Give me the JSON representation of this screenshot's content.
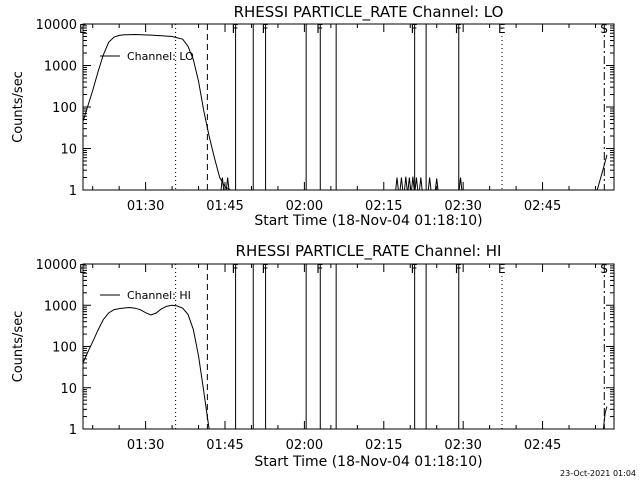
{
  "chart_data": [
    {
      "type": "line",
      "title": "RHESSI PARTICLE_RATE Channel: LO",
      "xlabel": "Start Time (18-Nov-04 01:18:10)",
      "ylabel": "Counts/sec",
      "yscale": "log",
      "ylim": [
        1,
        10000
      ],
      "xlim": [
        "01:18:10",
        "02:58:30"
      ],
      "xtick_labels": [
        "01:30",
        "01:45",
        "02:00",
        "02:15",
        "02:30",
        "02:45"
      ],
      "ytick_labels": [
        "1",
        "10",
        "100",
        "1000",
        "10000"
      ],
      "grid": false,
      "legend": "upper-left",
      "series": [
        {
          "name": "Channel: LO",
          "x": [
            "01:18:10",
            "01:20:00",
            "01:21:00",
            "01:22:00",
            "01:23:00",
            "01:24:00",
            "01:25:00",
            "01:26:00",
            "01:28:00",
            "01:31:00",
            "01:33:00",
            "01:35:00",
            "01:37:00",
            "01:38:00",
            "01:39:00",
            "01:40:00",
            "01:41:00",
            "01:42:00",
            "01:43:00",
            "01:44:00",
            "01:45:00",
            "01:46:00"
          ],
          "y": [
            45,
            250,
            700,
            1800,
            3600,
            4800,
            5300,
            5500,
            5600,
            5400,
            5200,
            5000,
            4300,
            2900,
            1400,
            420,
            80,
            20,
            6,
            2,
            1.2,
            1
          ]
        }
      ],
      "annotations": [
        {
          "time": "01:18:10",
          "label": "E",
          "style": "none"
        },
        {
          "time": "01:35:40",
          "label": "",
          "style": "dotted"
        },
        {
          "time": "01:41:40",
          "label": "",
          "style": "dashed"
        },
        {
          "time": "01:47:00",
          "label": "F",
          "style": "solid"
        },
        {
          "time": "01:50:20",
          "label": "",
          "style": "solid"
        },
        {
          "time": "01:52:40",
          "label": "F",
          "style": "solid"
        },
        {
          "time": "02:00:20",
          "label": "",
          "style": "solid"
        },
        {
          "time": "02:03:00",
          "label": "F",
          "style": "solid"
        },
        {
          "time": "02:06:00",
          "label": "",
          "style": "solid"
        },
        {
          "time": "02:20:50",
          "label": "F",
          "style": "solid"
        },
        {
          "time": "02:23:00",
          "label": "",
          "style": "solid"
        },
        {
          "time": "02:29:10",
          "label": "F",
          "style": "solid"
        },
        {
          "time": "02:37:20",
          "label": "E",
          "style": "dotted"
        },
        {
          "time": "02:56:40",
          "label": "S",
          "style": "dashdot"
        }
      ]
    },
    {
      "type": "line",
      "title": "RHESSI PARTICLE_RATE Channel: HI",
      "xlabel": "Start Time (18-Nov-04 01:18:10)",
      "ylabel": "Counts/sec",
      "yscale": "log",
      "ylim": [
        1,
        10000
      ],
      "xlim": [
        "01:18:10",
        "02:58:30"
      ],
      "xtick_labels": [
        "01:30",
        "01:45",
        "02:00",
        "02:15",
        "02:30",
        "02:45"
      ],
      "ytick_labels": [
        "1",
        "10",
        "100",
        "1000",
        "10000"
      ],
      "grid": false,
      "legend": "upper-left",
      "series": [
        {
          "name": "Channel: HI",
          "x": [
            "01:18:10",
            "01:19:00",
            "01:20:00",
            "01:21:00",
            "01:22:00",
            "01:23:00",
            "01:24:00",
            "01:25:00",
            "01:26:00",
            "01:27:00",
            "01:28:00",
            "01:29:00",
            "01:30:00",
            "01:31:00",
            "01:32:00",
            "01:33:00",
            "01:34:00",
            "01:35:00",
            "01:36:00",
            "01:37:00",
            "01:38:00",
            "01:39:00",
            "01:40:00",
            "01:41:00",
            "01:42:00"
          ],
          "y": [
            40,
            70,
            130,
            250,
            450,
            650,
            780,
            830,
            860,
            880,
            850,
            780,
            660,
            580,
            650,
            820,
            950,
            1000,
            960,
            850,
            600,
            260,
            60,
            8,
            1
          ]
        }
      ],
      "annotations": [
        {
          "time": "01:18:10",
          "label": "E",
          "style": "none"
        },
        {
          "time": "01:35:40",
          "label": "",
          "style": "dotted"
        },
        {
          "time": "01:41:40",
          "label": "",
          "style": "dashed"
        },
        {
          "time": "01:47:00",
          "label": "F",
          "style": "solid"
        },
        {
          "time": "01:50:20",
          "label": "",
          "style": "solid"
        },
        {
          "time": "01:52:40",
          "label": "F",
          "style": "solid"
        },
        {
          "time": "02:00:20",
          "label": "",
          "style": "solid"
        },
        {
          "time": "02:03:00",
          "label": "F",
          "style": "solid"
        },
        {
          "time": "02:06:00",
          "label": "",
          "style": "solid"
        },
        {
          "time": "02:20:50",
          "label": "F",
          "style": "solid"
        },
        {
          "time": "02:23:00",
          "label": "",
          "style": "solid"
        },
        {
          "time": "02:29:10",
          "label": "F",
          "style": "solid"
        },
        {
          "time": "02:37:20",
          "label": "E",
          "style": "dotted"
        },
        {
          "time": "02:56:40",
          "label": "S",
          "style": "dashdot"
        }
      ]
    }
  ],
  "footer": {
    "timestamp": "23-Oct-2021 01:04"
  }
}
